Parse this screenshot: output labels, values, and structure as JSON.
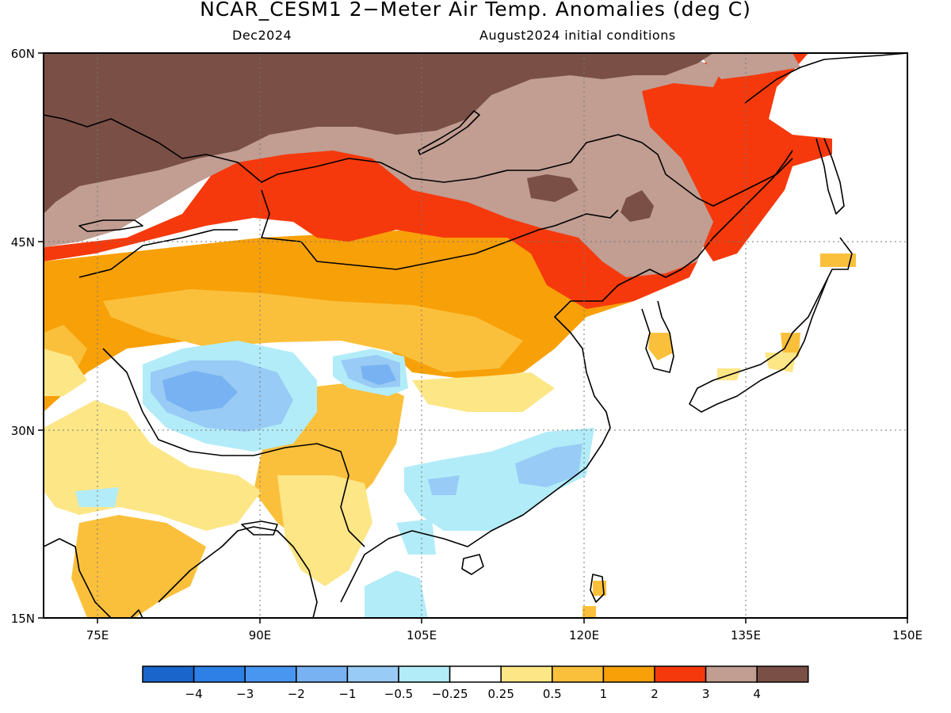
{
  "title": "NCAR_CESM1 2−Meter Air Temp. Anomalies (deg C)",
  "subtitle_left": "Dec2024",
  "subtitle_right": "August2024 initial conditions",
  "map": {
    "lon_range": [
      70,
      150
    ],
    "lat_range": [
      15,
      60
    ],
    "lon_ticks": [
      "75E",
      "90E",
      "105E",
      "120E",
      "135E",
      "150E"
    ],
    "lat_ticks": [
      "60N",
      "45N",
      "30N",
      "15N"
    ],
    "grid": "dotted"
  },
  "colorbar": {
    "labels": [
      "−4",
      "−3",
      "−2",
      "−1",
      "−0.5",
      "−0.25",
      "0.25",
      "0.5",
      "1",
      "2",
      "3",
      "4"
    ],
    "colors": [
      "#1965cc",
      "#2e7fe6",
      "#4896f0",
      "#78b2f2",
      "#98cbf5",
      "#b2ecf8",
      "#ffffff",
      "#fde686",
      "#fbc03b",
      "#f7a008",
      "#f5390c",
      "#c19d92",
      "#7a4f45"
    ]
  },
  "colors": {
    "above_4": "#7a4f45",
    "3_to_4": "#c19d92",
    "2_to_3": "#f5390c",
    "1_to_2": "#f7a008",
    "0.5_to_1": "#fbc03b",
    "0.25_to_0.5": "#fde686",
    "neutral": "#ffffff",
    "minus_0.5_to_minus_0.25": "#b2ecf8",
    "minus_1_to_minus_0.5": "#98cbf5",
    "minus_2_to_minus_1": "#78b2f2"
  }
}
